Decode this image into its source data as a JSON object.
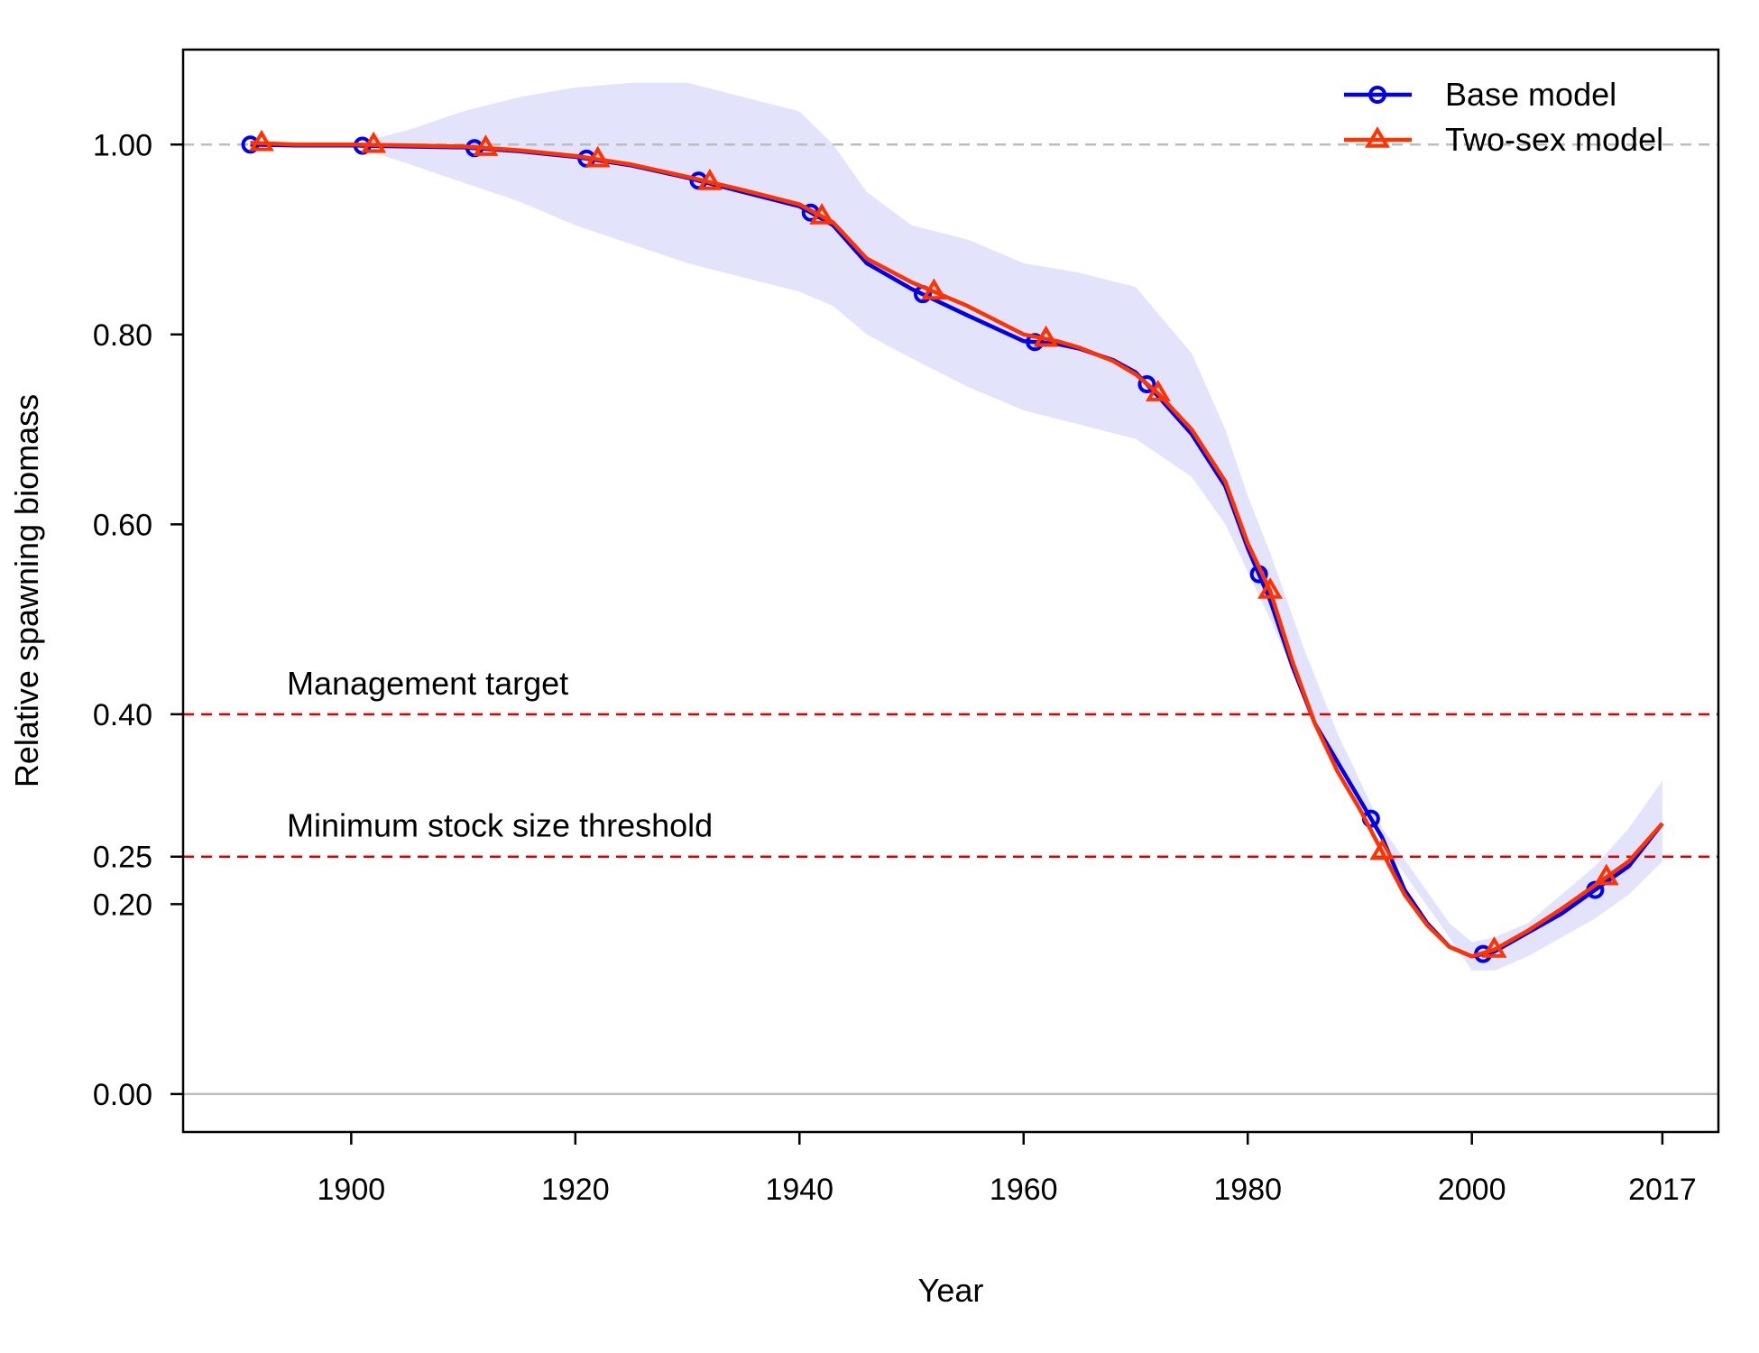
{
  "chart_data": {
    "type": "line",
    "title": "",
    "xlabel": "Year",
    "ylabel": "Relative spawning biomass",
    "xlim": [
      1885,
      2022
    ],
    "ylim": [
      -0.04,
      1.1
    ],
    "x_ticks": [
      1900,
      1920,
      1940,
      1960,
      1980,
      2000,
      2017
    ],
    "y_ticks": [
      0.0,
      0.2,
      0.25,
      0.4,
      0.6,
      0.8,
      1.0
    ],
    "y_tick_labels": [
      "0.00",
      "0.20",
      "0.25",
      "0.40",
      "0.60",
      "0.80",
      "1.00"
    ],
    "grid": false,
    "legend_position": "top-right",
    "reference_lines": [
      {
        "y": 1.0,
        "color": "#bdbdbd",
        "style": "dashed",
        "label": ""
      },
      {
        "y": 0.4,
        "color": "#e00000",
        "style": "dashed",
        "label": "Management target"
      },
      {
        "y": 0.25,
        "color": "#e00000",
        "style": "dashed",
        "label": "Minimum stock size threshold"
      },
      {
        "y": 0.0,
        "color": "#bdbdbd",
        "style": "solid",
        "label": ""
      }
    ],
    "series": [
      {
        "name": "Base model",
        "color": "#0000ee",
        "marker": "circle",
        "x": [
          1891,
          1895,
          1900,
          1905,
          1910,
          1915,
          1920,
          1925,
          1930,
          1935,
          1940,
          1943,
          1946,
          1950,
          1955,
          1960,
          1963,
          1965,
          1968,
          1970,
          1972,
          1975,
          1978,
          1980,
          1982,
          1984,
          1986,
          1988,
          1990,
          1992,
          1994,
          1996,
          1998,
          2000,
          2002,
          2005,
          2008,
          2011,
          2014,
          2017
        ],
        "y": [
          1.0,
          0.999,
          0.999,
          0.998,
          0.997,
          0.993,
          0.987,
          0.978,
          0.965,
          0.95,
          0.935,
          0.915,
          0.875,
          0.848,
          0.82,
          0.793,
          0.79,
          0.785,
          0.773,
          0.76,
          0.735,
          0.695,
          0.64,
          0.575,
          0.52,
          0.45,
          0.39,
          0.35,
          0.31,
          0.27,
          0.215,
          0.18,
          0.155,
          0.145,
          0.15,
          0.17,
          0.19,
          0.215,
          0.24,
          0.285
        ],
        "marker_x": [
          1891,
          1901,
          1911,
          1921,
          1931,
          1941,
          1951,
          1961,
          1971,
          1981,
          1991,
          2001,
          2011
        ]
      },
      {
        "name": "Two-sex model",
        "color": "#ff3300",
        "marker": "triangle",
        "x": [
          1891,
          1895,
          1900,
          1905,
          1910,
          1915,
          1920,
          1925,
          1930,
          1935,
          1940,
          1943,
          1946,
          1950,
          1955,
          1960,
          1963,
          1965,
          1968,
          1970,
          1972,
          1975,
          1978,
          1980,
          1982,
          1984,
          1986,
          1988,
          1990,
          1992,
          1994,
          1996,
          1998,
          2000,
          2002,
          2005,
          2008,
          2011,
          2014,
          2017
        ],
        "y": [
          1.002,
          1.0,
          1.0,
          0.999,
          0.998,
          0.994,
          0.988,
          0.979,
          0.966,
          0.952,
          0.937,
          0.918,
          0.88,
          0.855,
          0.83,
          0.8,
          0.793,
          0.786,
          0.772,
          0.758,
          0.738,
          0.7,
          0.645,
          0.58,
          0.53,
          0.455,
          0.39,
          0.34,
          0.3,
          0.255,
          0.21,
          0.178,
          0.155,
          0.145,
          0.152,
          0.172,
          0.195,
          0.22,
          0.245,
          0.285
        ],
        "marker_x": [
          1892,
          1902,
          1912,
          1922,
          1932,
          1942,
          1952,
          1962,
          1972,
          1982,
          1992,
          2002,
          2012
        ]
      }
    ],
    "uncertainty_band": {
      "name": "",
      "color": "#e3e3fc",
      "x": [
        1891,
        1900,
        1905,
        1910,
        1915,
        1920,
        1925,
        1930,
        1935,
        1940,
        1943,
        1946,
        1950,
        1955,
        1960,
        1965,
        1970,
        1975,
        1978,
        1980,
        1982,
        1985,
        1988,
        1990,
        1992,
        1995,
        1998,
        2000,
        2002,
        2005,
        2008,
        2011,
        2014,
        2017
      ],
      "lower": [
        1.0,
        0.999,
        0.98,
        0.96,
        0.94,
        0.915,
        0.895,
        0.875,
        0.86,
        0.845,
        0.83,
        0.8,
        0.775,
        0.745,
        0.72,
        0.705,
        0.69,
        0.65,
        0.6,
        0.55,
        0.5,
        0.42,
        0.35,
        0.31,
        0.265,
        0.215,
        0.165,
        0.13,
        0.13,
        0.145,
        0.165,
        0.185,
        0.21,
        0.245
      ],
      "upper": [
        1.0,
        1.0,
        1.015,
        1.035,
        1.05,
        1.06,
        1.065,
        1.065,
        1.05,
        1.035,
        1.0,
        0.95,
        0.915,
        0.9,
        0.875,
        0.865,
        0.85,
        0.78,
        0.7,
        0.63,
        0.57,
        0.47,
        0.38,
        0.33,
        0.28,
        0.23,
        0.18,
        0.16,
        0.165,
        0.18,
        0.21,
        0.24,
        0.28,
        0.33
      ]
    }
  }
}
